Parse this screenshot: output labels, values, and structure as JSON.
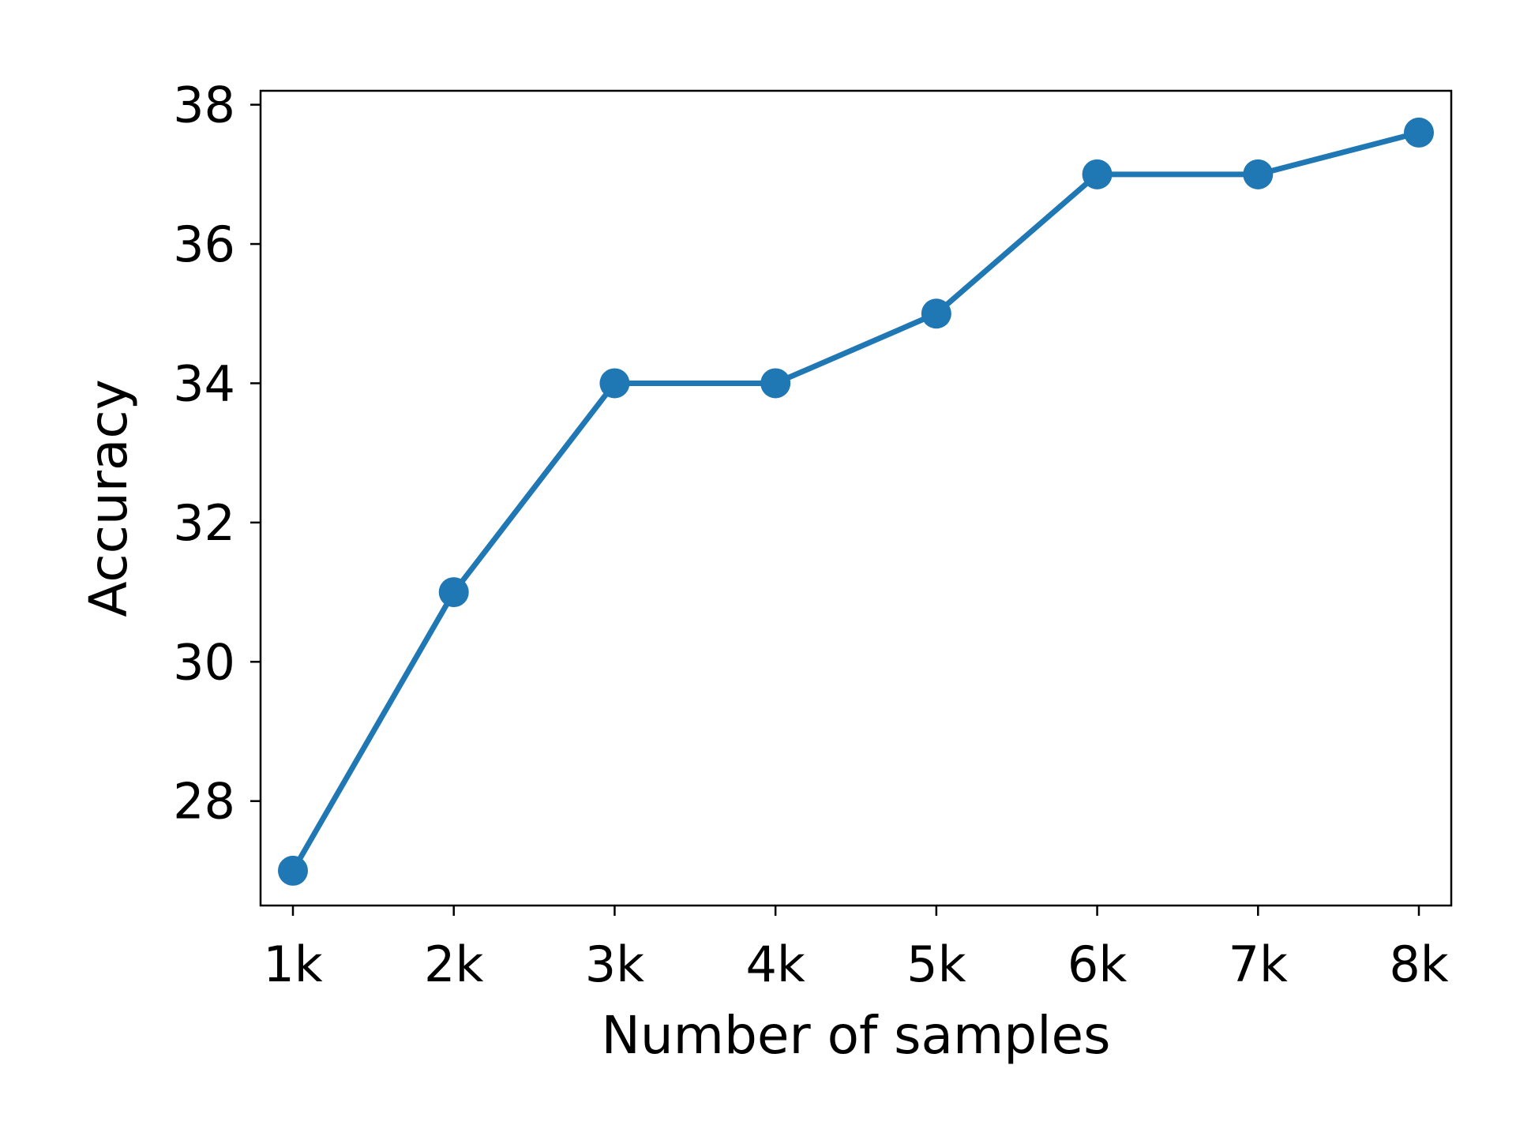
{
  "chart_data": {
    "type": "line",
    "title": "",
    "xlabel": "Number of samples",
    "ylabel": "Accuracy",
    "categories": [
      "1k",
      "2k",
      "3k",
      "4k",
      "5k",
      "6k",
      "7k",
      "8k"
    ],
    "series": [
      {
        "values": [
          27,
          31,
          34,
          34,
          35,
          37,
          37,
          37.6
        ],
        "color": "#1f77b4",
        "marker": "circle"
      }
    ],
    "ylim": [
      26.5,
      38.2
    ],
    "yticks": [
      28,
      30,
      32,
      34,
      36,
      38
    ],
    "grid": false,
    "legend": "none"
  }
}
